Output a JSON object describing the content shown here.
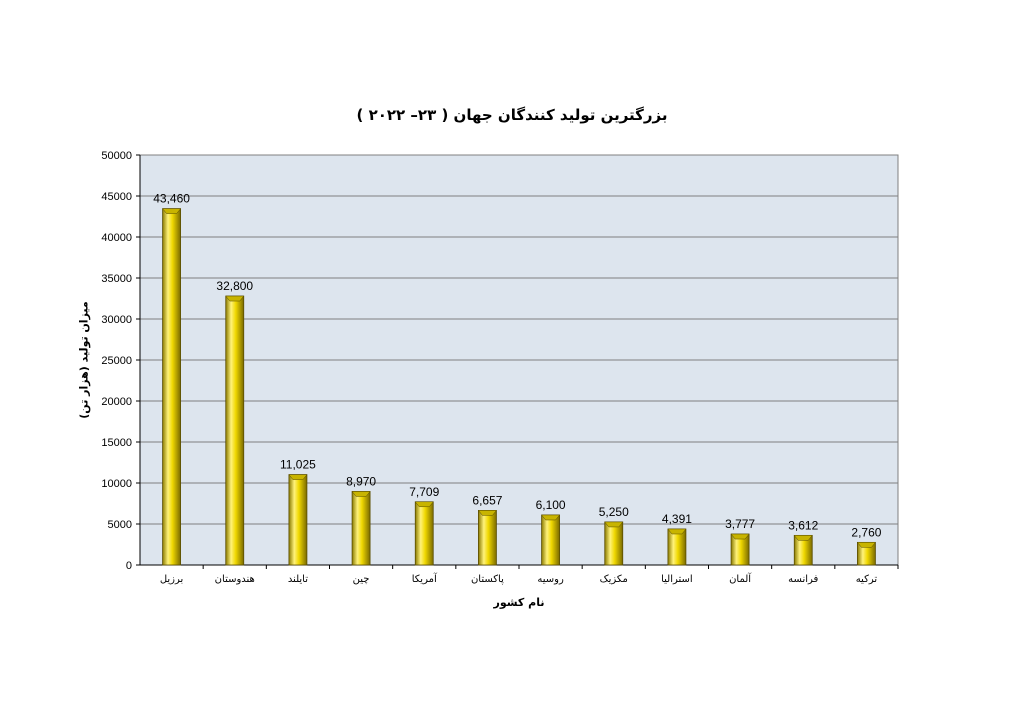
{
  "chart_data": {
    "type": "bar",
    "title": "بزرگترین تولید کنندگان جهان ( ۲۳– ۲۰۲۲ )",
    "xlabel": "نام کشور",
    "ylabel": "میزان تولید (هزار تن)",
    "categories": [
      "برزیل",
      "هندوستان",
      "تایلند",
      "چین",
      "آمریکا",
      "پاکستان",
      "روسیه",
      "مکزیک",
      "استرالیا",
      "آلمان",
      "فرانسه",
      "ترکیه"
    ],
    "values": [
      43460,
      32800,
      11025,
      8970,
      7709,
      6657,
      6100,
      5250,
      4391,
      3777,
      3612,
      2760
    ],
    "data_labels": [
      "43,460",
      "32,800",
      "11,025",
      "8,970",
      "7,709",
      "6,657",
      "6,100",
      "5,250",
      "4,391",
      "3,777",
      "3,612",
      "2,760"
    ],
    "ylim": [
      0,
      50000
    ],
    "yticks": [
      0,
      5000,
      10000,
      15000,
      20000,
      25000,
      30000,
      35000,
      40000,
      45000,
      50000
    ],
    "grid": true,
    "legend": "none",
    "colors": {
      "bar": "#e8d200",
      "plot_background": "#dde5ee",
      "grid": "#808080"
    }
  }
}
